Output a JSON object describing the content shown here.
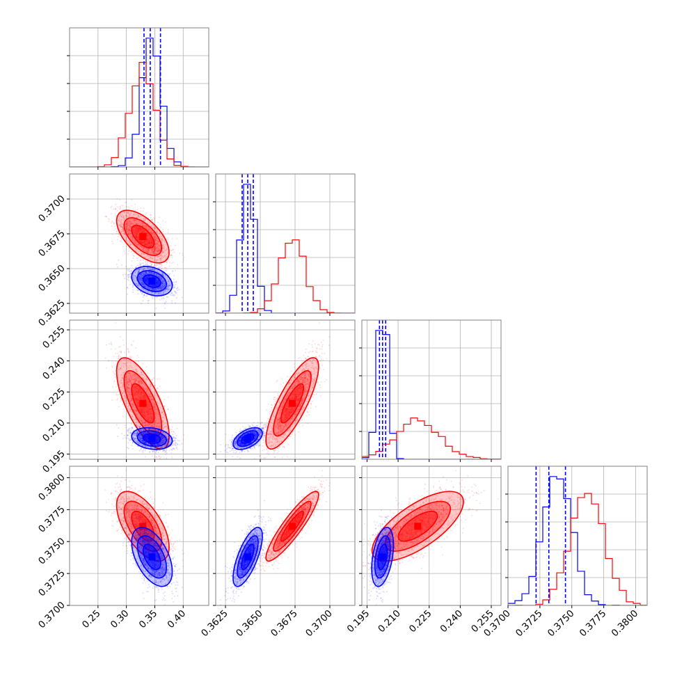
{
  "figure": {
    "type": "corner-plot"
  },
  "chart_data": {
    "type": "scatter",
    "title": "",
    "variables": [
      {
        "id": "p0",
        "ylabel": "",
        "xlabel": "",
        "range": [
          0.2,
          0.445
        ],
        "ticks": [
          0.25,
          0.3,
          0.35,
          0.4
        ],
        "tick_labels": [
          "0.25",
          "0.30",
          "0.35",
          "0.40"
        ]
      },
      {
        "id": "p1",
        "ylabel": "",
        "xlabel": "",
        "range": [
          0.3618,
          0.3718
        ],
        "ticks": [
          0.3625,
          0.365,
          0.3675,
          0.37
        ],
        "tick_labels": [
          "0.3625",
          "0.3650",
          "0.3675",
          "0.3700"
        ]
      },
      {
        "id": "p2",
        "ylabel": "",
        "xlabel": "",
        "range": [
          0.1925,
          0.2597
        ],
        "ticks": [
          0.195,
          0.21,
          0.225,
          0.24,
          0.255
        ],
        "tick_labels": [
          "0.195",
          "0.210",
          "0.225",
          "0.240",
          "0.255"
        ]
      },
      {
        "id": "p3",
        "ylabel": "",
        "xlabel": "",
        "range": [
          0.37,
          0.3809
        ],
        "ticks": [
          0.37,
          0.3725,
          0.375,
          0.3775,
          0.38
        ],
        "tick_labels": [
          "0.3700",
          "0.3725",
          "0.3750",
          "0.3775",
          "0.3800"
        ]
      }
    ],
    "grid": true,
    "legend": "none",
    "series": [
      {
        "color": "#ff0000",
        "mean": [
          0.329,
          0.3673,
          0.2195,
          0.3762
        ],
        "sd": [
          0.022,
          0.0009,
          0.0105,
          0.0013
        ],
        "correlation": [
          [
            1.0,
            -0.6,
            -0.7,
            -0.6
          ],
          [
            -0.6,
            1.0,
            0.8,
            0.9
          ],
          [
            -0.7,
            0.8,
            1.0,
            0.7
          ],
          [
            -0.6,
            0.9,
            0.7,
            1.0
          ]
        ]
      },
      {
        "color": "#0000ff",
        "mean": [
          0.345,
          0.3641,
          0.2025,
          0.3738
        ],
        "sd": [
          0.017,
          0.0005,
          0.0025,
          0.0011
        ],
        "correlation": [
          [
            1.0,
            -0.3,
            -0.2,
            -0.5
          ],
          [
            -0.3,
            1.0,
            0.5,
            0.7
          ],
          [
            -0.2,
            0.5,
            1.0,
            0.4
          ],
          [
            -0.5,
            0.7,
            0.4,
            1.0
          ]
        ],
        "quantiles": [
          [
            0.331,
            0.342,
            0.36
          ],
          [
            0.3637,
            0.3641,
            0.3645
          ],
          [
            0.201,
            0.2025,
            0.204
          ],
          [
            0.3722,
            0.3732,
            0.3745
          ]
        ]
      }
    ]
  }
}
